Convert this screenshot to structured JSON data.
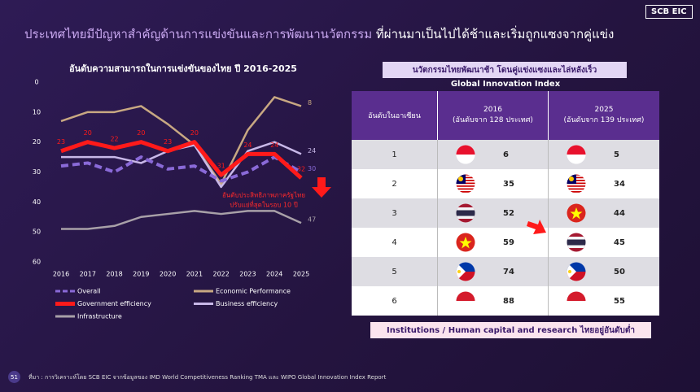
{
  "header": {
    "title_part1": "ประเทศไทยมีปัญหาสำคัญด้านการแข่งขันและการพัฒนานวัตกรรม",
    "title_part2": "ที่ผ่านมาเป็นไปได้ช้าและเริ่มถูกแซงจากคู่แข่ง",
    "logo": "SCB EIC"
  },
  "chart_data": {
    "type": "line",
    "title": "อันดับความสามารถในการแข่งขันของไทย ปี 2016-2025",
    "categories": [
      "2016",
      "2017",
      "2018",
      "2019",
      "2020",
      "2021",
      "2022",
      "2023",
      "2024",
      "2025"
    ],
    "series": [
      {
        "name": "Overall",
        "color": "#8a6ad8",
        "dashed": true,
        "labels": "last",
        "values": [
          28,
          27,
          30,
          25,
          29,
          28,
          33,
          30,
          25,
          30
        ]
      },
      {
        "name": "Economic Performance",
        "color": "#c8a882",
        "dashed": false,
        "labels": "last",
        "values": [
          13,
          10,
          10,
          8,
          14,
          21,
          34,
          16,
          5,
          8
        ]
      },
      {
        "name": "Government efficiency",
        "color": "#ff1a1a",
        "dashed": false,
        "labels": "all",
        "values": [
          23,
          20,
          22,
          20,
          23,
          20,
          31,
          24,
          24,
          32
        ]
      },
      {
        "name": "Business efficiency",
        "color": "#c8b8e8",
        "dashed": false,
        "labels": "last",
        "values": [
          25,
          25,
          25,
          27,
          23,
          21,
          35,
          23,
          20,
          24
        ]
      },
      {
        "name": "Infrastructure",
        "color": "#a8a0a8",
        "dashed": false,
        "labels": "last",
        "values": [
          49,
          49,
          48,
          45,
          44,
          43,
          44,
          43,
          43,
          47
        ]
      }
    ],
    "ylim": [
      0,
      60
    ],
    "yticks": [
      0,
      10,
      20,
      30,
      40,
      50,
      60
    ],
    "invert_y": true,
    "grid": false,
    "annotation": [
      "อันดับประสิทธิภาพภาครัฐไทย",
      "ปรับแย่ที่สุดในรอบ 10 ปี"
    ]
  },
  "table": {
    "title": "นวัตกรรมไทยพัฒนาช้า โดนคู่แข่งแซงและไล่หลังเร็ว",
    "subtitle": "Global Innovation Index",
    "columns": [
      [
        "อันดับในอาเซียน"
      ],
      [
        "2016",
        "(อันดับจาก 128 ประเทศ)"
      ],
      [
        "2025",
        "(อันดับจาก 139 ประเทศ)"
      ]
    ],
    "rows": [
      [
        1,
        6,
        5
      ],
      [
        2,
        35,
        34
      ],
      [
        3,
        52,
        44
      ],
      [
        4,
        59,
        45
      ],
      [
        5,
        74,
        50
      ],
      [
        6,
        88,
        55
      ]
    ]
  },
  "note": "Institutions / Human capital and research ไทยอยู่อันดับต่ำ",
  "footer": {
    "source": "ที่มา : การวิเคราะห์โดย SCB EIC จากข้อมูลของ IMD World Competitiveness Ranking TMA และ WIPO Global Innovation Index Report",
    "page": "51"
  }
}
